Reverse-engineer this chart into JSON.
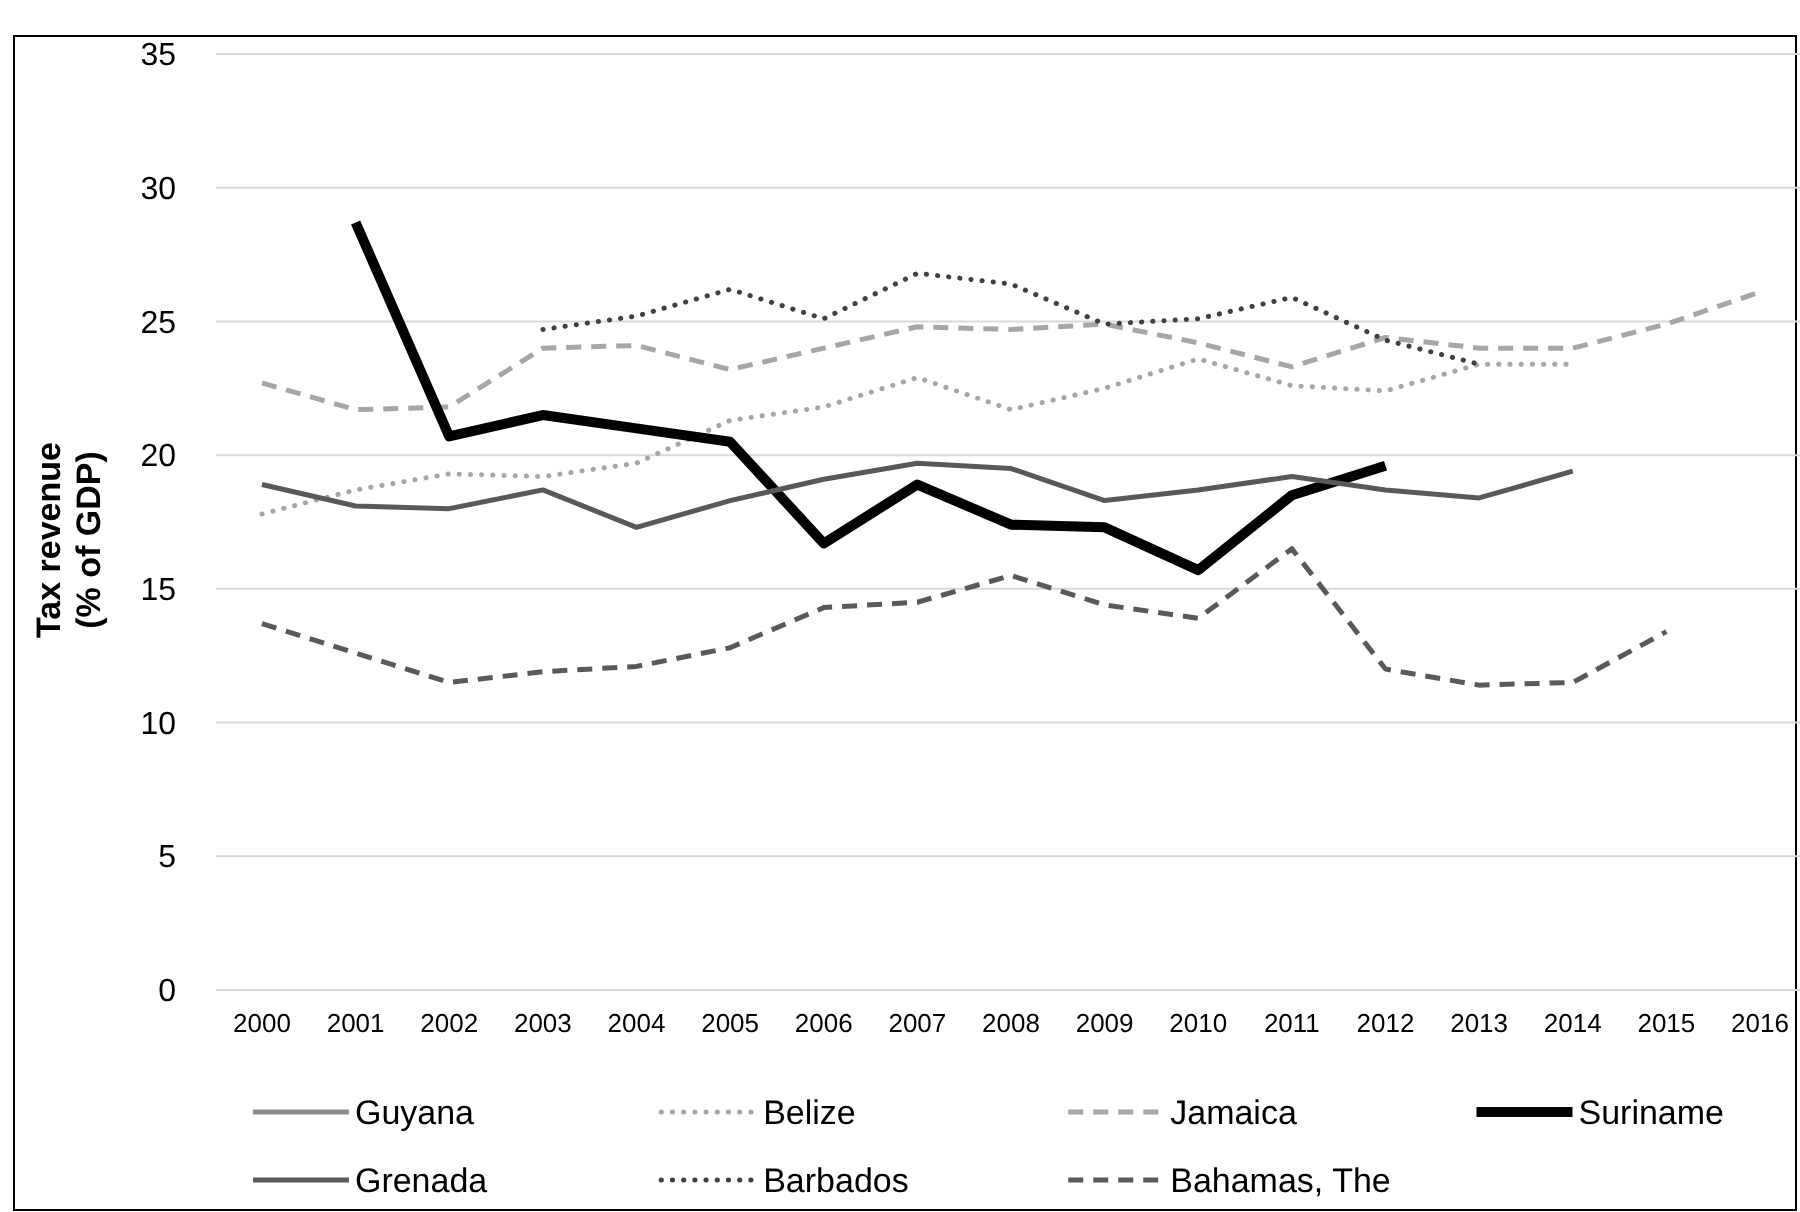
{
  "chart_data": {
    "type": "line",
    "ylabel": "Tax revenue (% of GDP)",
    "categories": [
      "2000",
      "2001",
      "2002",
      "2003",
      "2004",
      "2005",
      "2006",
      "2007",
      "2008",
      "2009",
      "2010",
      "2011",
      "2012",
      "2013",
      "2014",
      "2015",
      "2016"
    ],
    "ylim": [
      0,
      35
    ],
    "yticks": [
      0,
      5,
      10,
      15,
      20,
      25,
      30,
      35
    ],
    "grid": "y",
    "legend": "bottom",
    "marker": "none",
    "series": [
      {
        "name": "Guyana",
        "color": "#8c8c8c",
        "line_style": "solid",
        "values": [
          null,
          null,
          null,
          null,
          null,
          null,
          null,
          null,
          null,
          null,
          null,
          null,
          null,
          null,
          null,
          null,
          null
        ]
      },
      {
        "name": "Belize",
        "color": "#a6a6a6",
        "line_style": "dotted",
        "values": [
          17.8,
          18.7,
          19.3,
          19.2,
          19.7,
          21.3,
          21.8,
          22.9,
          21.7,
          22.5,
          23.6,
          22.6,
          22.4,
          23.4,
          23.4,
          null,
          null
        ]
      },
      {
        "name": "Jamaica",
        "color": "#a6a6a6",
        "line_style": "dashed",
        "values": [
          22.7,
          21.7,
          21.8,
          24.0,
          24.1,
          23.2,
          24.0,
          24.8,
          24.7,
          24.9,
          24.2,
          23.3,
          24.4,
          24.0,
          24.0,
          24.9,
          26.1
        ]
      },
      {
        "name": "Suriname",
        "color": "#000000",
        "line_style": "solid",
        "values": [
          null,
          28.7,
          20.7,
          21.5,
          21.0,
          20.5,
          16.7,
          18.9,
          17.4,
          17.3,
          15.7,
          18.5,
          19.6,
          null,
          null,
          null,
          null
        ]
      },
      {
        "name": "Grenada",
        "color": "#595959",
        "line_style": "solid",
        "values": [
          18.9,
          18.1,
          18.0,
          18.7,
          17.3,
          18.3,
          19.1,
          19.7,
          19.5,
          18.3,
          18.7,
          19.2,
          18.7,
          18.4,
          19.4,
          null,
          null
        ]
      },
      {
        "name": "Barbados",
        "color": "#404040",
        "line_style": "dotted",
        "values": [
          null,
          null,
          null,
          24.7,
          25.2,
          26.2,
          25.1,
          26.8,
          26.4,
          24.9,
          25.1,
          25.9,
          24.3,
          23.4,
          null,
          null,
          null
        ]
      },
      {
        "name": "Bahamas, The",
        "color": "#595959",
        "line_style": "dashed",
        "values": [
          13.7,
          12.6,
          11.5,
          11.9,
          12.1,
          12.8,
          14.3,
          14.5,
          15.5,
          14.4,
          13.9,
          16.5,
          12.0,
          11.4,
          11.5,
          13.4,
          null
        ]
      }
    ]
  }
}
